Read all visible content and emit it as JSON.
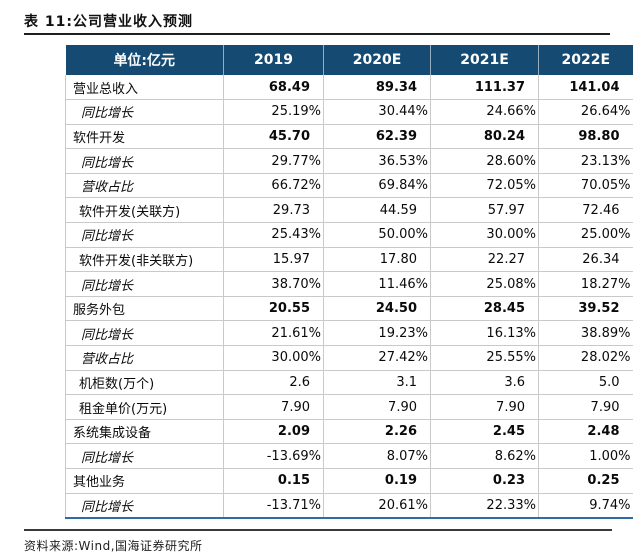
{
  "title": "表 11:公司营业收入预测",
  "table": {
    "header": {
      "unit_label": "单位:亿元",
      "years": [
        "2019",
        "2020E",
        "2021E",
        "2022E"
      ]
    },
    "rows": [
      {
        "label": "营业总收入",
        "style": "bold",
        "values": [
          "68.49",
          "89.34",
          "111.37",
          "141.04"
        ]
      },
      {
        "label": "同比增长",
        "style": "italic",
        "values": [
          "25.19%",
          "30.44%",
          "24.66%",
          "26.64%"
        ]
      },
      {
        "label": "软件开发",
        "style": "bold",
        "values": [
          "45.70",
          "62.39",
          "80.24",
          "98.80"
        ]
      },
      {
        "label": "同比增长",
        "style": "italic",
        "values": [
          "29.77%",
          "36.53%",
          "28.60%",
          "23.13%"
        ]
      },
      {
        "label": "营收占比",
        "style": "italic",
        "values": [
          "66.72%",
          "69.84%",
          "72.05%",
          "70.05%"
        ]
      },
      {
        "label": "软件开发(关联方)",
        "style": "normal",
        "values": [
          "29.73",
          "44.59",
          "57.97",
          "72.46"
        ]
      },
      {
        "label": "同比增长",
        "style": "italic",
        "values": [
          "25.43%",
          "50.00%",
          "30.00%",
          "25.00%"
        ]
      },
      {
        "label": "软件开发(非关联方)",
        "style": "normal",
        "values": [
          "15.97",
          "17.80",
          "22.27",
          "26.34"
        ]
      },
      {
        "label": "同比增长",
        "style": "italic",
        "values": [
          "38.70%",
          "11.46%",
          "25.08%",
          "18.27%"
        ]
      },
      {
        "label": "服务外包",
        "style": "bold",
        "values": [
          "20.55",
          "24.50",
          "28.45",
          "39.52"
        ]
      },
      {
        "label": "同比增长",
        "style": "italic",
        "values": [
          "21.61%",
          "19.23%",
          "16.13%",
          "38.89%"
        ]
      },
      {
        "label": "营收占比",
        "style": "italic",
        "values": [
          "30.00%",
          "27.42%",
          "25.55%",
          "28.02%"
        ]
      },
      {
        "label": "机柜数(万个)",
        "style": "normal",
        "values": [
          "2.6",
          "3.1",
          "3.6",
          "5.0"
        ]
      },
      {
        "label": "租金单价(万元)",
        "style": "normal",
        "values": [
          "7.90",
          "7.90",
          "7.90",
          "7.90"
        ]
      },
      {
        "label": "系统集成设备",
        "style": "bold",
        "values": [
          "2.09",
          "2.26",
          "2.45",
          "2.48"
        ]
      },
      {
        "label": "同比增长",
        "style": "italic",
        "values": [
          "-13.69%",
          "8.07%",
          "8.62%",
          "1.00%"
        ]
      },
      {
        "label": "其他业务",
        "style": "bold",
        "values": [
          "0.15",
          "0.19",
          "0.23",
          "0.25"
        ]
      },
      {
        "label": "同比增长",
        "style": "italic",
        "values": [
          "-13.71%",
          "20.61%",
          "22.33%",
          "9.74%"
        ]
      }
    ]
  },
  "source": "资料来源:Wind,国海证券研究所",
  "colors": {
    "header_bg": "#154a72",
    "header_text": "#ffffff",
    "row_border": "#c9c9c9",
    "table_bottom_border": "#2e6da4",
    "rule_dark": "#1f1f1f"
  }
}
